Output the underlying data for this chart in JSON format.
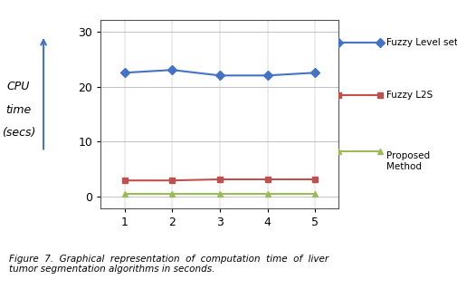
{
  "x": [
    1,
    2,
    3,
    4,
    5
  ],
  "fuzzy_levelset": [
    22.5,
    23.0,
    22.0,
    22.0,
    22.5
  ],
  "fuzzy_l2s": [
    3.0,
    3.0,
    3.2,
    3.2,
    3.2
  ],
  "proposed": [
    0.5,
    0.5,
    0.5,
    0.5,
    0.5
  ],
  "fuzzy_levelset_color": "#4472C4",
  "fuzzy_l2s_color": "#C0504D",
  "proposed_color": "#9BBB59",
  "ylim": [
    -2,
    32
  ],
  "yticks": [
    0,
    10,
    20,
    30
  ],
  "xticks": [
    1,
    2,
    3,
    4,
    5
  ],
  "ylabel_lines": [
    "CPU",
    "time",
    "(secs)"
  ],
  "legend_labels": [
    "Fuzzy Level set",
    "Fuzzy L2S",
    "Proposed\nMethod"
  ],
  "caption": "Figure  7.  Graphical  representation  of  computation  time  of  liver\ntumor segmentation algorithms in seconds.",
  "bg_color": "#FFFFFF",
  "grid_color": "#AAAAAA"
}
